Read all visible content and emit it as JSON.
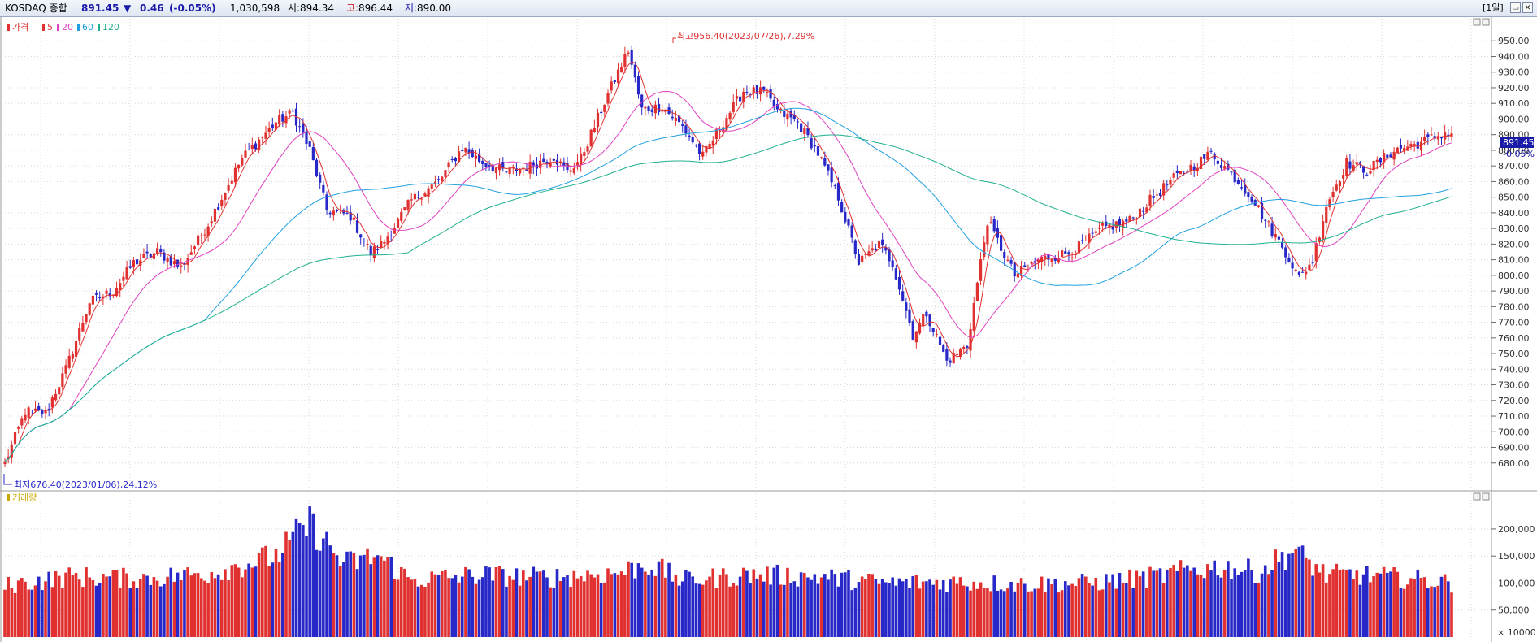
{
  "header": {
    "title": "KOSDAQ 종합",
    "price": "891.45",
    "change_arrow": "▼",
    "change": "0.46",
    "change_pct": "(-0.05%)",
    "volume": "1,030,598",
    "open_label": "시:",
    "open": "894.34",
    "high_label": "고:",
    "high": "896.44",
    "low_label": "저:",
    "low": "890.00",
    "period": "[1일]",
    "min_btn": "▭",
    "close_btn": "✕"
  },
  "price_panel": {
    "legend": [
      {
        "label": "가격",
        "color": "#e03030"
      },
      {
        "label": "5",
        "color": "#e03030"
      },
      {
        "label": "20",
        "color": "#e040c0"
      },
      {
        "label": "60",
        "color": "#20a0e0"
      },
      {
        "label": "120",
        "color": "#20b090"
      }
    ],
    "high_annotation": "최고956.40(2023/07/26),7.29%",
    "low_annotation": "최저676.40(2023/01/06),24.12%",
    "last_price_label": "891.45",
    "last_change_label": "-0.05%"
  },
  "volume_panel": {
    "legend": "거래량",
    "unit_label": "× 10000"
  },
  "colors": {
    "up": "#e03030",
    "down": "#2828c8",
    "ma5": "#e03030",
    "ma20": "#e040c0",
    "ma60": "#20a0e0",
    "ma120": "#20b090",
    "grid": "#d8d8d8"
  },
  "chart_data": [
    {
      "type": "candlestick",
      "name": "KOSDAQ 종합 가격",
      "ylim": [
        670,
        960
      ],
      "yticks": [
        680,
        690,
        700,
        710,
        720,
        730,
        740,
        750,
        760,
        770,
        780,
        790,
        800,
        810,
        820,
        830,
        840,
        850,
        860,
        870,
        880,
        890,
        900,
        910,
        920,
        930,
        940,
        950
      ],
      "ytick_labels": [
        "680.00",
        "690.00",
        "700.00",
        "710.00",
        "720.00",
        "730.00",
        "740.00",
        "750.00",
        "760.00",
        "770.00",
        "780.00",
        "790.00",
        "800.00",
        "810.00",
        "820.00",
        "830.00",
        "840.00",
        "850.00",
        "860.00",
        "870.00",
        "880.00",
        "890.00",
        "900.00",
        "910.00",
        "920.00",
        "930.00",
        "940.00",
        "950.00"
      ],
      "anchors": [
        [
          0,
          680
        ],
        [
          6,
          713
        ],
        [
          12,
          712
        ],
        [
          18,
          740
        ],
        [
          25,
          783
        ],
        [
          32,
          790
        ],
        [
          38,
          808
        ],
        [
          45,
          815
        ],
        [
          52,
          805
        ],
        [
          60,
          833
        ],
        [
          70,
          875
        ],
        [
          80,
          898
        ],
        [
          85,
          904
        ],
        [
          90,
          880
        ],
        [
          95,
          842
        ],
        [
          102,
          838
        ],
        [
          108,
          814
        ],
        [
          112,
          822
        ],
        [
          120,
          848
        ],
        [
          128,
          860
        ],
        [
          135,
          882
        ],
        [
          141,
          872
        ],
        [
          148,
          866
        ],
        [
          155,
          870
        ],
        [
          162,
          876
        ],
        [
          166,
          866
        ],
        [
          170,
          875
        ],
        [
          178,
          916
        ],
        [
          184,
          944
        ],
        [
          188,
          906
        ],
        [
          194,
          908
        ],
        [
          200,
          895
        ],
        [
          206,
          876
        ],
        [
          212,
          898
        ],
        [
          218,
          918
        ],
        [
          224,
          917
        ],
        [
          228,
          905
        ],
        [
          234,
          898
        ],
        [
          240,
          878
        ],
        [
          246,
          850
        ],
        [
          252,
          808
        ],
        [
          258,
          820
        ],
        [
          262,
          808
        ],
        [
          268,
          762
        ],
        [
          272,
          776
        ],
        [
          278,
          745
        ],
        [
          284,
          755
        ],
        [
          290,
          835
        ],
        [
          298,
          800
        ],
        [
          305,
          810
        ],
        [
          315,
          815
        ],
        [
          324,
          830
        ],
        [
          332,
          835
        ],
        [
          338,
          848
        ],
        [
          345,
          862
        ],
        [
          352,
          872
        ],
        [
          356,
          878
        ],
        [
          362,
          865
        ],
        [
          368,
          850
        ],
        [
          372,
          835
        ],
        [
          378,
          815
        ],
        [
          382,
          798
        ],
        [
          386,
          810
        ],
        [
          390,
          845
        ],
        [
          396,
          872
        ],
        [
          402,
          867
        ],
        [
          410,
          880
        ],
        [
          418,
          885
        ],
        [
          425,
          891
        ]
      ],
      "ma_windows": [
        5,
        20,
        60,
        120
      ],
      "ma_labels": [
        "5",
        "20",
        "60",
        "120"
      ],
      "annotations": [
        {
          "text": "최고956.40(2023/07/26),7.29%",
          "value": 956.4
        },
        {
          "text": "최저676.40(2023/01/06),24.12%",
          "value": 676.4
        }
      ]
    },
    {
      "type": "bar",
      "name": "거래량",
      "ylim": [
        0,
        260000
      ],
      "yticks": [
        50000,
        100000,
        150000,
        200000
      ],
      "ytick_labels": [
        "50,000",
        "100,000",
        "150,000",
        "200,000"
      ],
      "unit": "× 10000",
      "volume_anchors": [
        [
          0,
          95000
        ],
        [
          20,
          112000
        ],
        [
          40,
          108000
        ],
        [
          60,
          118000
        ],
        [
          80,
          150000
        ],
        [
          90,
          210000
        ],
        [
          100,
          135000
        ],
        [
          110,
          150000
        ],
        [
          120,
          105000
        ],
        [
          140,
          115000
        ],
        [
          160,
          110000
        ],
        [
          180,
          118000
        ],
        [
          190,
          135000
        ],
        [
          200,
          105000
        ],
        [
          220,
          115000
        ],
        [
          240,
          112000
        ],
        [
          260,
          100000
        ],
        [
          280,
          102000
        ],
        [
          300,
          98000
        ],
        [
          320,
          100000
        ],
        [
          340,
          112000
        ],
        [
          350,
          125000
        ],
        [
          360,
          130000
        ],
        [
          370,
          120000
        ],
        [
          380,
          160000
        ],
        [
          390,
          115000
        ],
        [
          400,
          115000
        ],
        [
          410,
          110000
        ],
        [
          420,
          105000
        ],
        [
          427,
          100000
        ]
      ],
      "volume_unit_note": ""
    }
  ]
}
